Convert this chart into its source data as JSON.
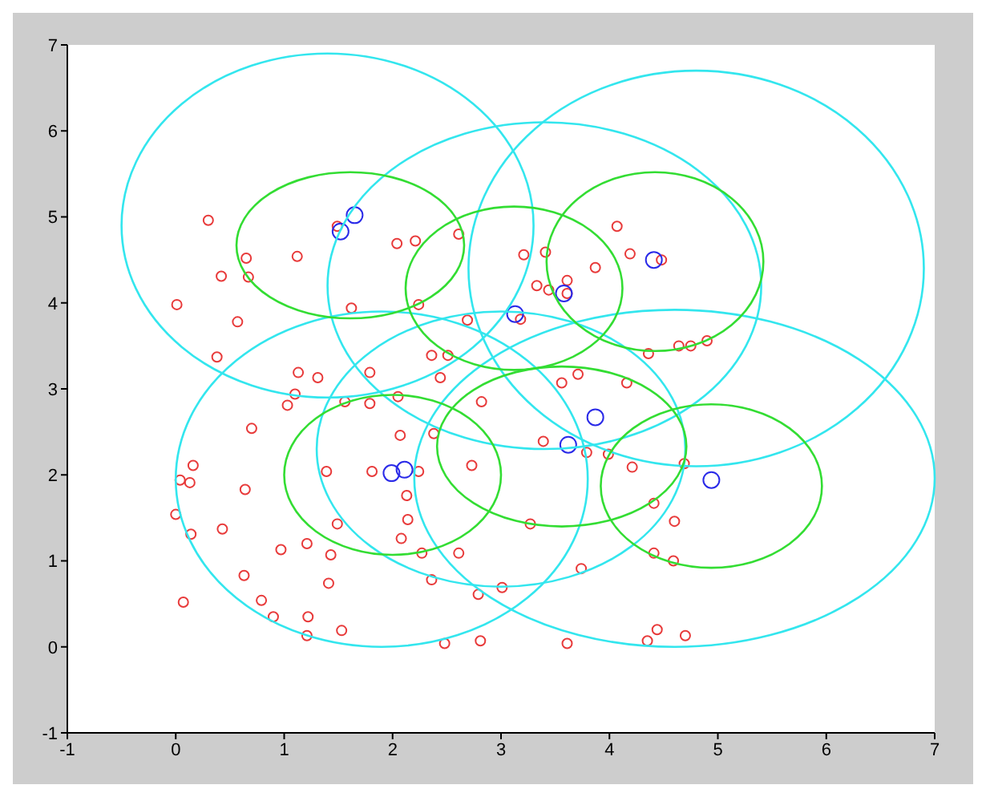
{
  "chart_data": {
    "type": "scatter",
    "xlim": [
      -1,
      7
    ],
    "ylim": [
      -1,
      7
    ],
    "xticks": [
      -1,
      0,
      1,
      2,
      3,
      4,
      5,
      6,
      7
    ],
    "yticks": [
      -1,
      0,
      1,
      2,
      3,
      4,
      5,
      6,
      7
    ],
    "grid": false,
    "series": [
      {
        "type": "scatter",
        "color": "#e83a3a",
        "marker": "circle",
        "x": [
          0.3,
          0.65,
          0.42,
          0.67,
          1.12,
          0.01,
          0.57,
          0.38,
          1.13,
          1.31,
          1.1,
          1.03,
          1.56,
          1.79,
          1.79,
          2.05,
          2.04,
          2.21,
          2.61,
          1.49,
          1.62,
          2.24,
          2.69,
          2.36,
          2.51,
          2.44,
          2.82,
          4.07,
          4.19,
          3.41,
          3.21,
          3.87,
          3.33,
          3.44,
          3.61,
          3.61,
          3.18,
          4.36,
          4.64,
          4.75,
          4.9,
          4.48,
          3.56,
          3.71,
          4.16,
          0.7,
          0.16,
          0.04,
          0.13,
          0.64,
          1.39,
          1.81,
          2.24,
          2.07,
          2.38,
          2.13,
          2.14,
          2.08,
          1.49,
          0.0,
          0.14,
          0.43,
          0.97,
          1.21,
          1.43,
          2.73,
          2.27,
          2.61,
          2.36,
          1.41,
          0.63,
          0.07,
          0.79,
          0.9,
          1.22,
          1.21,
          1.53,
          2.48,
          2.81,
          2.79,
          3.39,
          3.79,
          3.99,
          4.21,
          4.69,
          4.41,
          4.6,
          3.27,
          4.41,
          4.59,
          3.74,
          3.01,
          3.61,
          4.35,
          4.44,
          4.7
        ],
        "values": [
          4.96,
          4.52,
          4.31,
          4.3,
          4.54,
          3.98,
          3.78,
          3.37,
          3.19,
          3.13,
          2.94,
          2.81,
          2.85,
          2.83,
          3.19,
          2.91,
          4.69,
          4.72,
          4.8,
          4.89,
          3.94,
          3.98,
          3.8,
          3.39,
          3.39,
          3.13,
          2.85,
          4.89,
          4.57,
          4.59,
          4.56,
          4.41,
          4.2,
          4.15,
          4.11,
          4.26,
          3.81,
          3.41,
          3.5,
          3.5,
          3.56,
          4.5,
          3.07,
          3.17,
          3.07,
          2.54,
          2.11,
          1.94,
          1.91,
          1.83,
          2.04,
          2.04,
          2.04,
          2.46,
          2.48,
          1.76,
          1.48,
          1.26,
          1.43,
          1.54,
          1.31,
          1.37,
          1.13,
          1.2,
          1.07,
          2.11,
          1.09,
          1.09,
          0.78,
          0.74,
          0.83,
          0.52,
          0.54,
          0.35,
          0.35,
          0.13,
          0.19,
          0.04,
          0.07,
          0.61,
          2.39,
          2.26,
          2.24,
          2.09,
          2.13,
          1.67,
          1.46,
          1.43,
          1.09,
          1.0,
          0.91,
          0.69,
          0.04,
          0.07,
          0.2,
          0.13
        ]
      },
      {
        "type": "scatter",
        "color": "#2a2ae8",
        "marker": "circle",
        "x": [
          1.65,
          1.52,
          4.41,
          3.58,
          3.13,
          3.87,
          1.99,
          2.11,
          3.62,
          4.94
        ],
        "values": [
          5.02,
          4.83,
          4.5,
          4.11,
          3.87,
          2.67,
          2.02,
          2.06,
          2.35,
          1.94
        ]
      }
    ]
  }
}
